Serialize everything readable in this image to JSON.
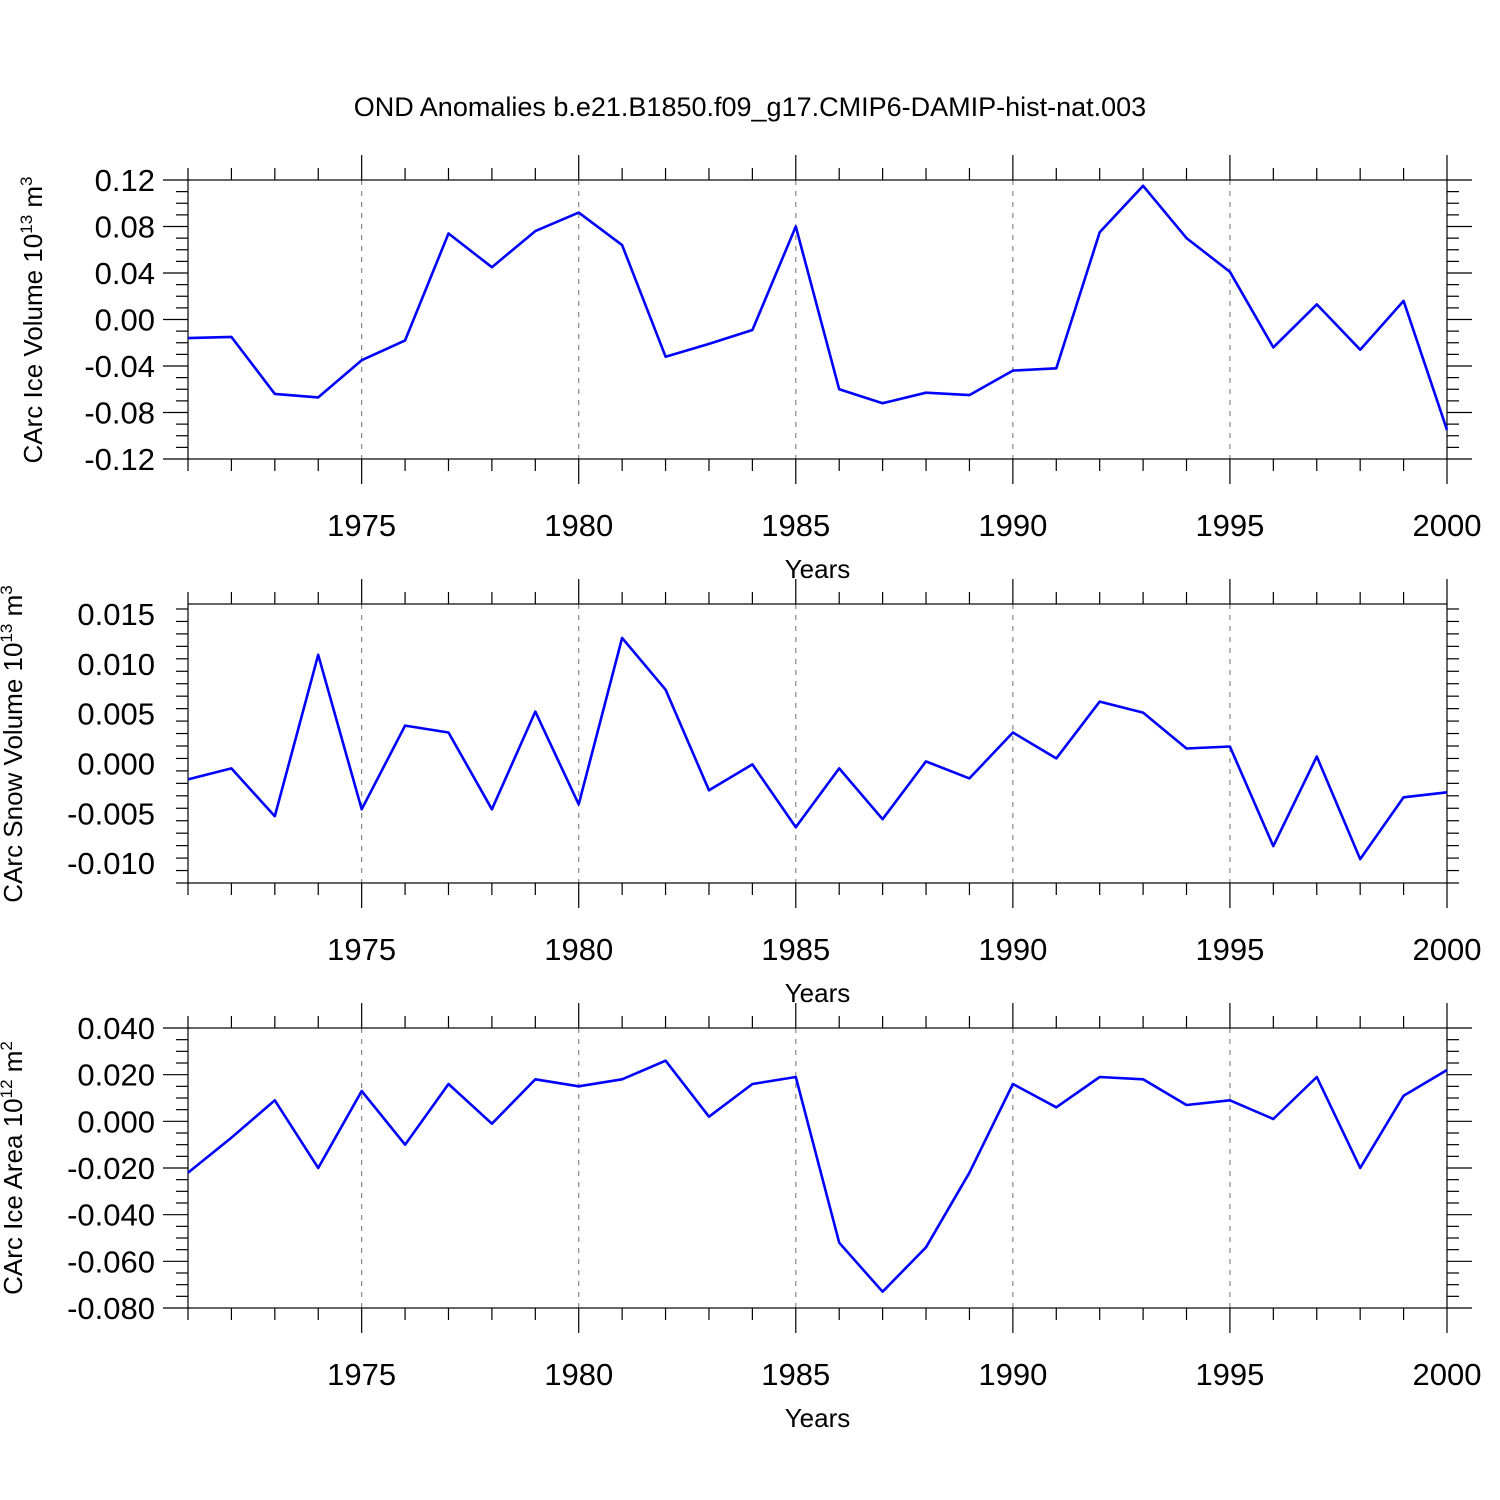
{
  "title": "OND Anomalies b.e21.B1850.f09_g17.CMIP6-DAMIP-hist-nat.003",
  "colors": {
    "line": "#0000ff",
    "axis": "#000000",
    "grid": "#888888"
  },
  "chart_data": [
    {
      "type": "line",
      "ylabel": {
        "main": "CArc Ice Volume 10",
        "sup": "13",
        "unit": " m",
        "unit_sup": "3"
      },
      "xlabel": "Years",
      "xlim": [
        1971,
        2000
      ],
      "ylim": [
        -0.12,
        0.12
      ],
      "yticks": [
        "0.12",
        "0.08",
        "0.04",
        "0.00",
        "-0.04",
        "-0.08",
        "-0.12"
      ],
      "ytick_values": [
        0.12,
        0.08,
        0.04,
        0.0,
        -0.04,
        -0.08,
        -0.12
      ],
      "xticks": [
        "1975",
        "1980",
        "1985",
        "1990",
        "1995",
        "2000"
      ],
      "xtick_values": [
        1975,
        1980,
        1985,
        1990,
        1995,
        2000
      ],
      "grid": "dashed vertical at major x ticks",
      "x": [
        1971,
        1972,
        1973,
        1974,
        1975,
        1976,
        1977,
        1978,
        1979,
        1980,
        1981,
        1982,
        1983,
        1984,
        1985,
        1986,
        1987,
        1988,
        1989,
        1990,
        1991,
        1992,
        1993,
        1994,
        1995,
        1996,
        1997,
        1998,
        1999,
        2000
      ],
      "values": [
        -0.016,
        -0.015,
        -0.064,
        -0.067,
        -0.035,
        -0.018,
        0.074,
        0.045,
        0.076,
        0.092,
        0.064,
        -0.032,
        -0.021,
        -0.009,
        0.08,
        -0.06,
        -0.072,
        -0.063,
        -0.065,
        -0.044,
        -0.042,
        0.075,
        0.115,
        0.07,
        0.041,
        -0.024,
        0.013,
        -0.026,
        0.016,
        -0.095
      ]
    },
    {
      "type": "line",
      "ylabel": {
        "main": "CArc Snow Volume 10",
        "sup": "13",
        "unit": " m",
        "unit_sup": "3"
      },
      "xlabel": "Years",
      "xlim": [
        1971,
        2000
      ],
      "ylim": [
        -0.012,
        0.016
      ],
      "yticks": [
        "0.015",
        "0.010",
        "0.005",
        "0.000",
        "-0.005",
        "-0.010"
      ],
      "ytick_values": [
        0.015,
        0.01,
        0.005,
        0.0,
        -0.005,
        -0.01
      ],
      "xticks": [
        "1975",
        "1980",
        "1985",
        "1990",
        "1995",
        "2000"
      ],
      "xtick_values": [
        1975,
        1980,
        1985,
        1990,
        1995,
        2000
      ],
      "grid": "dashed vertical at major x ticks",
      "x": [
        1971,
        1972,
        1973,
        1974,
        1975,
        1976,
        1977,
        1978,
        1979,
        1980,
        1981,
        1982,
        1983,
        1984,
        1985,
        1986,
        1987,
        1988,
        1989,
        1990,
        1991,
        1992,
        1993,
        1994,
        1995,
        1996,
        1997,
        1998,
        1999,
        2000
      ],
      "values": [
        -0.0016,
        -0.0005,
        -0.0053,
        0.0109,
        -0.0046,
        0.0038,
        0.0031,
        -0.0046,
        0.0052,
        -0.0041,
        0.0126,
        0.0074,
        -0.0027,
        -0.0001,
        -0.0064,
        -0.0005,
        -0.0056,
        0.0002,
        -0.0015,
        0.0031,
        0.0005,
        0.0062,
        0.0051,
        0.0015,
        0.0017,
        -0.0083,
        0.0007,
        -0.0096,
        -0.0034,
        -0.0029
      ]
    },
    {
      "type": "line",
      "ylabel": {
        "main": "CArc Ice Area 10",
        "sup": "12",
        "unit": " m",
        "unit_sup": "2"
      },
      "xlabel": "Years",
      "xlim": [
        1971,
        2000
      ],
      "ylim": [
        -0.08,
        0.04
      ],
      "yticks": [
        "0.040",
        "0.020",
        "0.000",
        "-0.020",
        "-0.040",
        "-0.060",
        "-0.080"
      ],
      "ytick_values": [
        0.04,
        0.02,
        0.0,
        -0.02,
        -0.04,
        -0.06,
        -0.08
      ],
      "xticks": [
        "1975",
        "1980",
        "1985",
        "1990",
        "1995",
        "2000"
      ],
      "xtick_values": [
        1975,
        1980,
        1985,
        1990,
        1995,
        2000
      ],
      "grid": "dashed vertical at major x ticks",
      "x": [
        1971,
        1972,
        1973,
        1974,
        1975,
        1976,
        1977,
        1978,
        1979,
        1980,
        1981,
        1982,
        1983,
        1984,
        1985,
        1986,
        1987,
        1988,
        1989,
        1990,
        1991,
        1992,
        1993,
        1994,
        1995,
        1996,
        1997,
        1998,
        1999,
        2000
      ],
      "values": [
        -0.022,
        -0.007,
        0.009,
        -0.02,
        0.013,
        -0.01,
        0.016,
        -0.001,
        0.018,
        0.015,
        0.018,
        0.026,
        0.002,
        0.016,
        0.019,
        -0.052,
        -0.073,
        -0.054,
        -0.022,
        0.016,
        0.006,
        0.019,
        0.018,
        0.007,
        0.009,
        0.001,
        0.019,
        -0.02,
        0.011,
        0.022
      ]
    }
  ]
}
